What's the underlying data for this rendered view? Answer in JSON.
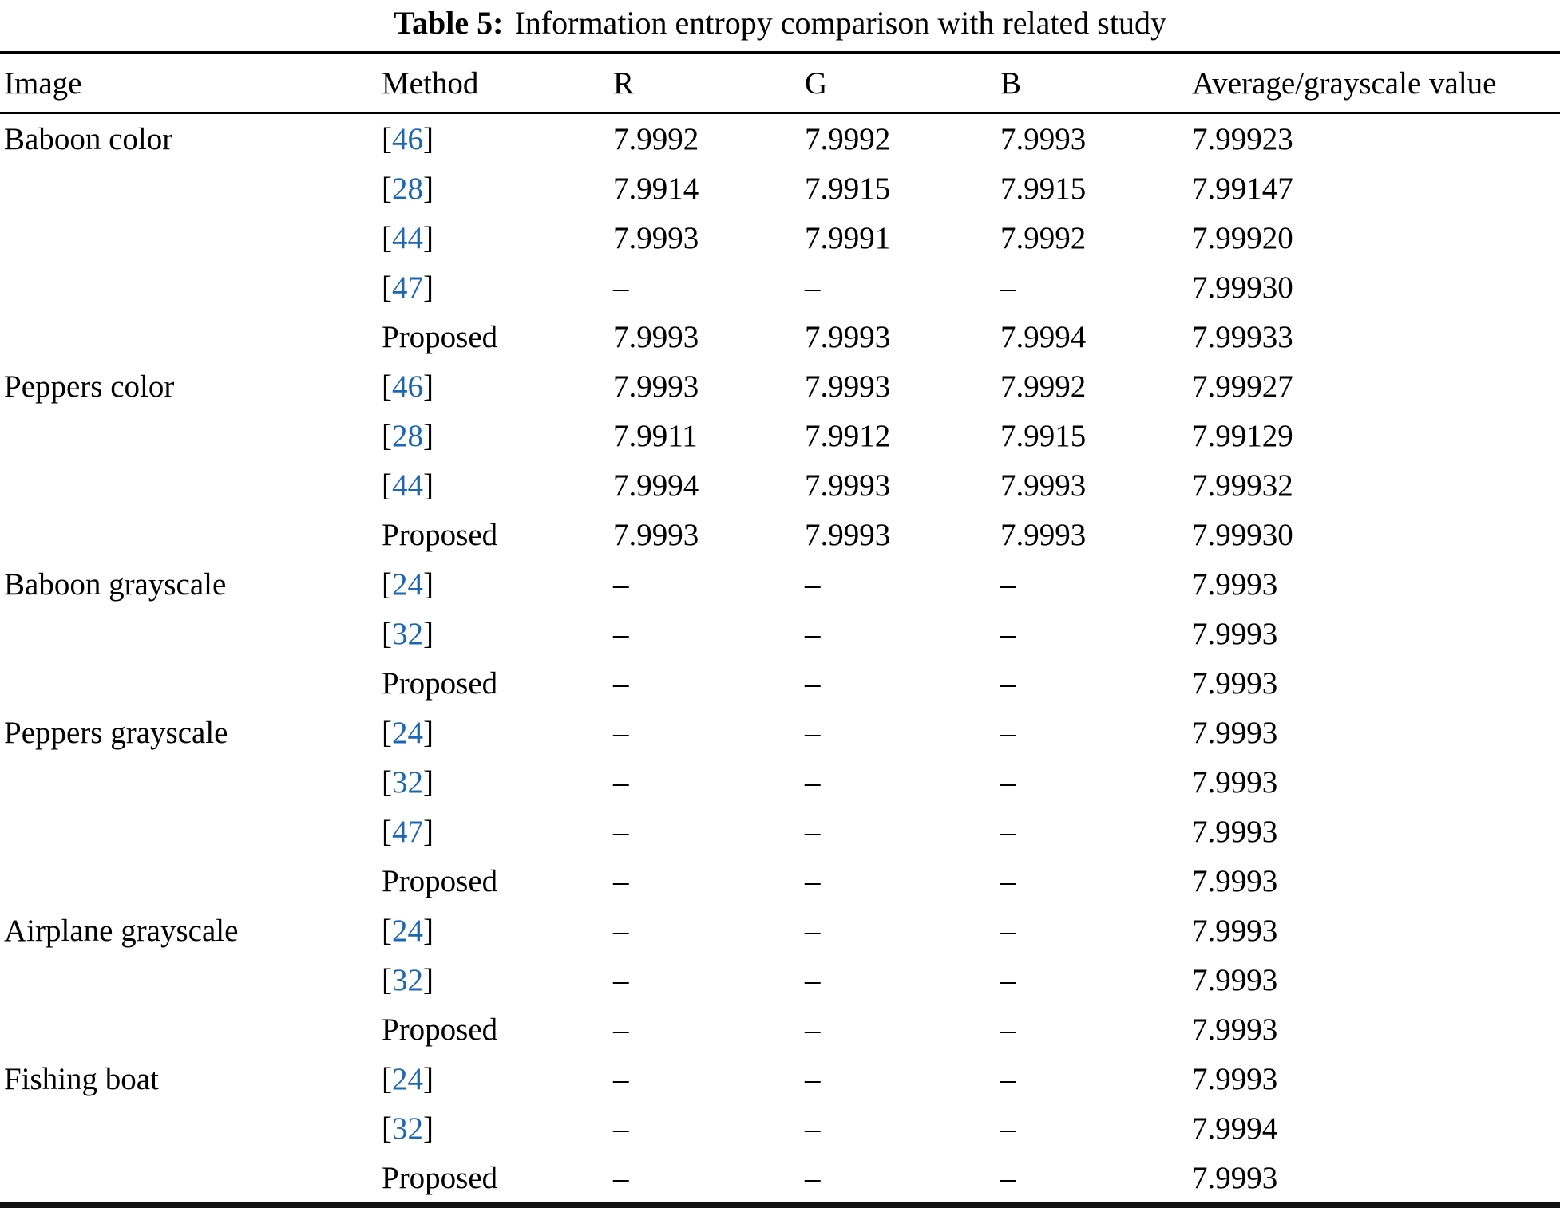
{
  "caption": {
    "label": "Table 5:",
    "text": "Information entropy comparison with related study"
  },
  "colors": {
    "citation_blue": "#1b67b4",
    "text": "#000000",
    "background": "#ffffff"
  },
  "table": {
    "columns": [
      "Image",
      "Method",
      "R",
      "G",
      "B",
      "Average/grayscale value"
    ],
    "empty_marker": "–",
    "rows": [
      {
        "image": "Baboon color",
        "method": "[46]",
        "r": "7.9992",
        "g": "7.9992",
        "b": "7.9993",
        "avg": "7.99923"
      },
      {
        "image": "",
        "method": "[28]",
        "r": "7.9914",
        "g": "7.9915",
        "b": "7.9915",
        "avg": "7.99147"
      },
      {
        "image": "",
        "method": "[44]",
        "r": "7.9993",
        "g": "7.9991",
        "b": "7.9992",
        "avg": "7.99920"
      },
      {
        "image": "",
        "method": "[47]",
        "r": "–",
        "g": "–",
        "b": "–",
        "avg": "7.99930"
      },
      {
        "image": "",
        "method": "Proposed",
        "r": "7.9993",
        "g": "7.9993",
        "b": "7.9994",
        "avg": "7.99933"
      },
      {
        "image": "Peppers color",
        "method": "[46]",
        "r": "7.9993",
        "g": "7.9993",
        "b": "7.9992",
        "avg": "7.99927"
      },
      {
        "image": "",
        "method": "[28]",
        "r": "7.9911",
        "g": "7.9912",
        "b": "7.9915",
        "avg": "7.99129"
      },
      {
        "image": "",
        "method": "[44]",
        "r": "7.9994",
        "g": "7.9993",
        "b": "7.9993",
        "avg": "7.99932"
      },
      {
        "image": "",
        "method": "Proposed",
        "r": "7.9993",
        "g": "7.9993",
        "b": "7.9993",
        "avg": "7.99930"
      },
      {
        "image": "Baboon grayscale",
        "method": "[24]",
        "r": "–",
        "g": "–",
        "b": "–",
        "avg": "7.9993"
      },
      {
        "image": "",
        "method": "[32]",
        "r": "–",
        "g": "–",
        "b": "–",
        "avg": "7.9993"
      },
      {
        "image": "",
        "method": "Proposed",
        "r": "–",
        "g": "–",
        "b": "–",
        "avg": "7.9993"
      },
      {
        "image": "Peppers grayscale",
        "method": "[24]",
        "r": "–",
        "g": "–",
        "b": "–",
        "avg": "7.9993"
      },
      {
        "image": "",
        "method": "[32]",
        "r": "–",
        "g": "–",
        "b": "–",
        "avg": "7.9993"
      },
      {
        "image": "",
        "method": "[47]",
        "r": "–",
        "g": "–",
        "b": "–",
        "avg": "7.9993"
      },
      {
        "image": "",
        "method": "Proposed",
        "r": "–",
        "g": "–",
        "b": "–",
        "avg": "7.9993"
      },
      {
        "image": "Airplane grayscale",
        "method": "[24]",
        "r": "–",
        "g": "–",
        "b": "–",
        "avg": "7.9993"
      },
      {
        "image": "",
        "method": "[32]",
        "r": "–",
        "g": "–",
        "b": "–",
        "avg": "7.9993"
      },
      {
        "image": "",
        "method": "Proposed",
        "r": "–",
        "g": "–",
        "b": "–",
        "avg": "7.9993"
      },
      {
        "image": "Fishing boat",
        "method": "[24]",
        "r": "–",
        "g": "–",
        "b": "–",
        "avg": "7.9993"
      },
      {
        "image": "",
        "method": "[32]",
        "r": "–",
        "g": "–",
        "b": "–",
        "avg": "7.9994"
      },
      {
        "image": "",
        "method": "Proposed",
        "r": "–",
        "g": "–",
        "b": "–",
        "avg": "7.9993"
      }
    ]
  }
}
